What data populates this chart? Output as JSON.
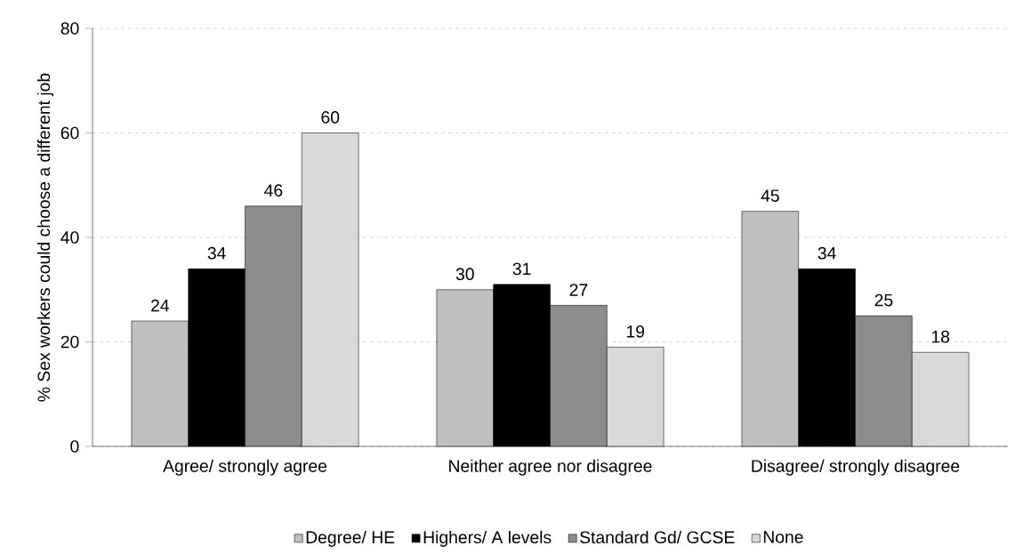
{
  "chart_data": {
    "type": "bar",
    "ylabel": "% Sex workers could choose a different job",
    "categories": [
      "Agree/ strongly agree",
      "Neither agree nor disagree",
      "Disagree/ strongly disagree"
    ],
    "series": [
      {
        "name": "Degree/ HE",
        "color": "#bfbfbf",
        "values": [
          24,
          30,
          45
        ]
      },
      {
        "name": "Highers/ A levels",
        "color": "#000000",
        "values": [
          34,
          31,
          34
        ]
      },
      {
        "name": "Standard Gd/ GCSE",
        "color": "#8c8c8c",
        "values": [
          46,
          27,
          25
        ]
      },
      {
        "name": "None",
        "color": "#d9d9d9",
        "values": [
          60,
          19,
          18
        ]
      }
    ],
    "ylim": [
      0,
      80
    ],
    "yticks": [
      0,
      20,
      40,
      60,
      80
    ],
    "grid": "y",
    "legend": "bottom",
    "data_labels": true
  }
}
